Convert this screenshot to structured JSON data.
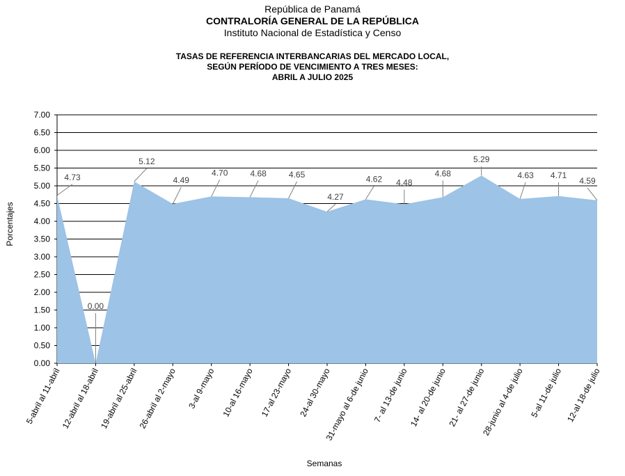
{
  "header": {
    "line1": "República de Panamá",
    "line2": "CONTRALORÍA GENERAL DE LA REPÚBLICA",
    "line3": "Instituto Nacional de Estadística y Censo"
  },
  "chart_data": {
    "type": "area",
    "title": [
      "TASAS DE REFERENCIA INTERBANCARIAS DEL MERCADO LOCAL,",
      "SEGÚN PERÍODO DE VENCIMIENTO A TRES MESES:",
      "ABRIL A JULIO 2025"
    ],
    "xlabel": "Semanas",
    "ylabel": "Porcentajes",
    "categories": [
      "5-abril al 11-abril",
      "12-abril al 18-abril",
      "19-abril al 25-abril",
      "26-abril al 2-mayo",
      "3-al 9-mayo",
      "10-al 16-mayo",
      "17-al 23-mayo",
      "24-al 30-mayo",
      "31-mayo al 6-de junio",
      "7- al 13-de junio",
      "14- al 20-de junio",
      "21- al 27-de junio",
      "28-junio al 4-de julio",
      "5-al 11-de julio",
      "12-al 18-de julio"
    ],
    "values": [
      4.73,
      0.0,
      5.12,
      4.49,
      4.7,
      4.68,
      4.65,
      4.27,
      4.62,
      4.48,
      4.68,
      5.29,
      4.63,
      4.71,
      4.59
    ],
    "data_labels": [
      "4.73",
      "0.00",
      "5.12",
      "4.49",
      "4.70",
      "4.68",
      "4.65",
      "4.27",
      "4.62",
      "4.48",
      "4.68",
      "5.29",
      "4.63",
      "4.71",
      "4.59"
    ],
    "y_ticks": [
      "0.00",
      "0.50",
      "1.00",
      "1.50",
      "2.00",
      "2.50",
      "3.00",
      "3.50",
      "4.00",
      "4.50",
      "5.00",
      "5.50",
      "6.00",
      "6.50",
      "7.00"
    ],
    "ylim": [
      0,
      7
    ],
    "grid": true,
    "legend": "none",
    "fill_color": "#9DC3E6"
  }
}
